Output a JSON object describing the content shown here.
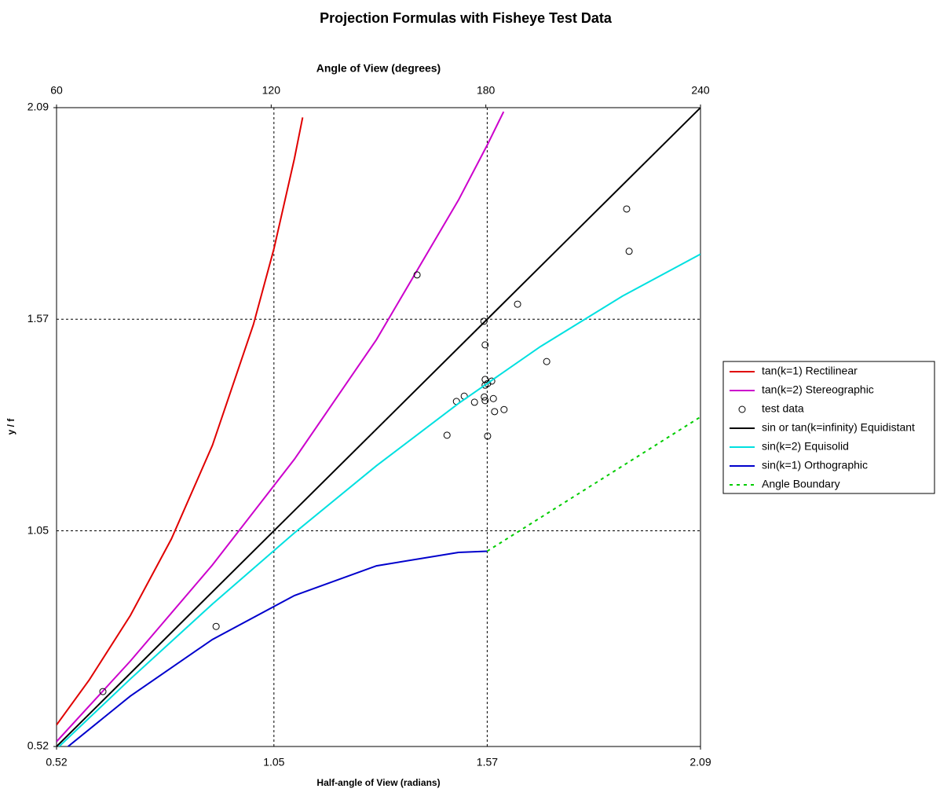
{
  "chart_data": {
    "type": "line",
    "title": "Projection Formulas with Fisheye Test Data",
    "x_label": "Half-angle of View (radians)",
    "x2_label": "Angle of View (degrees)",
    "y_label": "y / f",
    "xlim": [
      0.52,
      2.09
    ],
    "xticks": [
      0.52,
      1.05,
      1.57,
      2.09
    ],
    "x2lim": [
      60,
      240
    ],
    "x2ticks": [
      60,
      120,
      180,
      240
    ],
    "ylim": [
      0.52,
      2.09
    ],
    "yticks": [
      0.52,
      1.05,
      1.57,
      2.09
    ],
    "grid": true,
    "legend": "right",
    "series": [
      {
        "name": "tan(k=1) Rectilinear",
        "color": "#e00000",
        "style": "line",
        "x": [
          0.52,
          0.6,
          0.7,
          0.8,
          0.9,
          1.0,
          1.05,
          1.1,
          1.12
        ],
        "values": [
          0.573,
          0.684,
          0.842,
          1.03,
          1.26,
          1.557,
          1.743,
          1.965,
          2.066
        ]
      },
      {
        "name": "tan(k=2) Stereographic",
        "color": "#cc00cc",
        "style": "line",
        "x": [
          0.52,
          0.7,
          0.9,
          1.1,
          1.3,
          1.5,
          1.57,
          1.61
        ],
        "values": [
          0.532,
          0.73,
          0.966,
          1.226,
          1.52,
          1.863,
          1.998,
          2.08
        ]
      },
      {
        "name": "test data",
        "color": "#000000",
        "style": "scatter",
        "x": [
          0.633,
          0.909,
          1.399,
          1.472,
          1.495,
          1.514,
          1.539,
          1.562,
          1.565,
          1.565,
          1.565,
          1.571,
          1.563,
          1.565,
          1.571,
          1.581,
          1.585,
          1.588,
          1.611,
          1.644,
          1.715,
          1.91,
          1.916
        ],
        "values": [
          0.655,
          0.815,
          1.679,
          1.285,
          1.368,
          1.381,
          1.366,
          1.565,
          1.507,
          1.422,
          1.408,
          1.412,
          1.379,
          1.37,
          1.283,
          1.418,
          1.375,
          1.343,
          1.348,
          1.607,
          1.466,
          1.841,
          1.737
        ]
      },
      {
        "name": "sin or tan(k=infinity) Equidistant",
        "color": "#000000",
        "style": "line",
        "x": [
          0.52,
          2.09
        ],
        "values": [
          0.52,
          2.09
        ]
      },
      {
        "name": "sin(k=2) Equisolid",
        "color": "#00e0e0",
        "style": "line",
        "x": [
          0.52,
          0.7,
          0.9,
          1.1,
          1.3,
          1.5,
          1.7,
          1.9,
          2.09
        ],
        "values": [
          0.514,
          0.686,
          0.87,
          1.045,
          1.21,
          1.363,
          1.503,
          1.627,
          1.73
        ]
      },
      {
        "name": "sin(k=1) Orthographic",
        "color": "#0000cc",
        "style": "line",
        "x": [
          0.52,
          0.7,
          0.9,
          1.1,
          1.3,
          1.5,
          1.57
        ],
        "values": [
          0.497,
          0.644,
          0.783,
          0.891,
          0.964,
          0.997,
          1.0
        ]
      },
      {
        "name": "Angle Boundary",
        "color": "#00cc00",
        "style": "dotted",
        "x": [
          1.57,
          2.09
        ],
        "values": [
          1.0,
          1.33
        ]
      }
    ]
  }
}
